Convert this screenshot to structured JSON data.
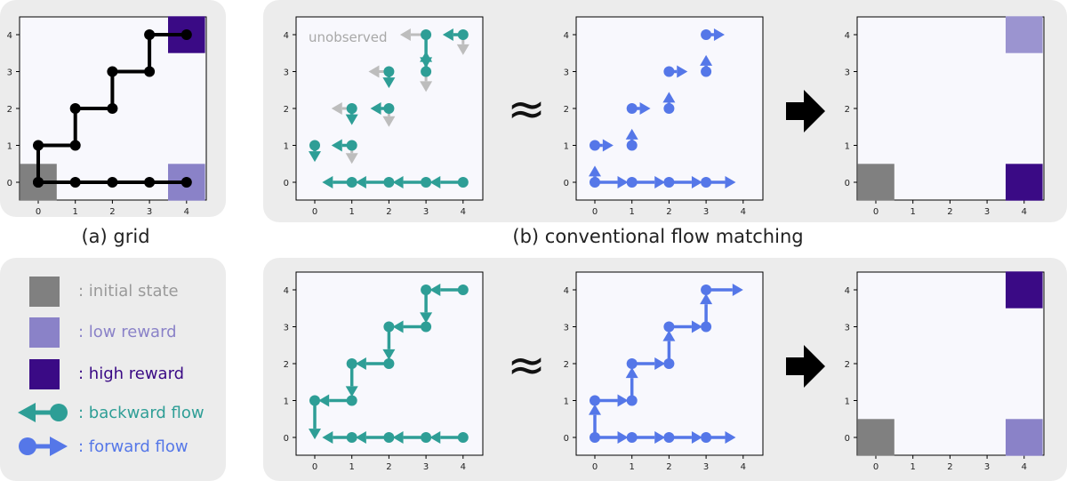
{
  "captions": {
    "grid": "(a) grid",
    "flow_matching": "(b) conventional flow matching"
  },
  "annotations": {
    "unobserved": "unobserved",
    "approx": "≈"
  },
  "ticks": [
    "0",
    "1",
    "2",
    "3",
    "4"
  ],
  "colors": {
    "initial": "#808080",
    "low_reward": "#8a82c8",
    "high_reward": "#3a0a85",
    "backward": "#2e9e96",
    "forward": "#5577e8",
    "unobserved": "#bdbdbd",
    "path": "#000000"
  },
  "legend": [
    {
      "kind": "initial",
      "label": ": initial state",
      "color": "#9a9a9a"
    },
    {
      "kind": "low",
      "label": ": low reward",
      "color": "#8a82c8"
    },
    {
      "kind": "high",
      "label": ": high reward",
      "color": "#3a0a85"
    },
    {
      "kind": "backward",
      "label": ": backward flow",
      "color": "#2e9e96"
    },
    {
      "kind": "forward",
      "label": ": forward flow",
      "color": "#5577e8"
    }
  ],
  "icons": [
    "initial-state-swatch",
    "low-reward-swatch",
    "high-reward-swatch",
    "backward-flow-icon",
    "forward-flow-icon",
    "implication-arrow-icon"
  ]
}
